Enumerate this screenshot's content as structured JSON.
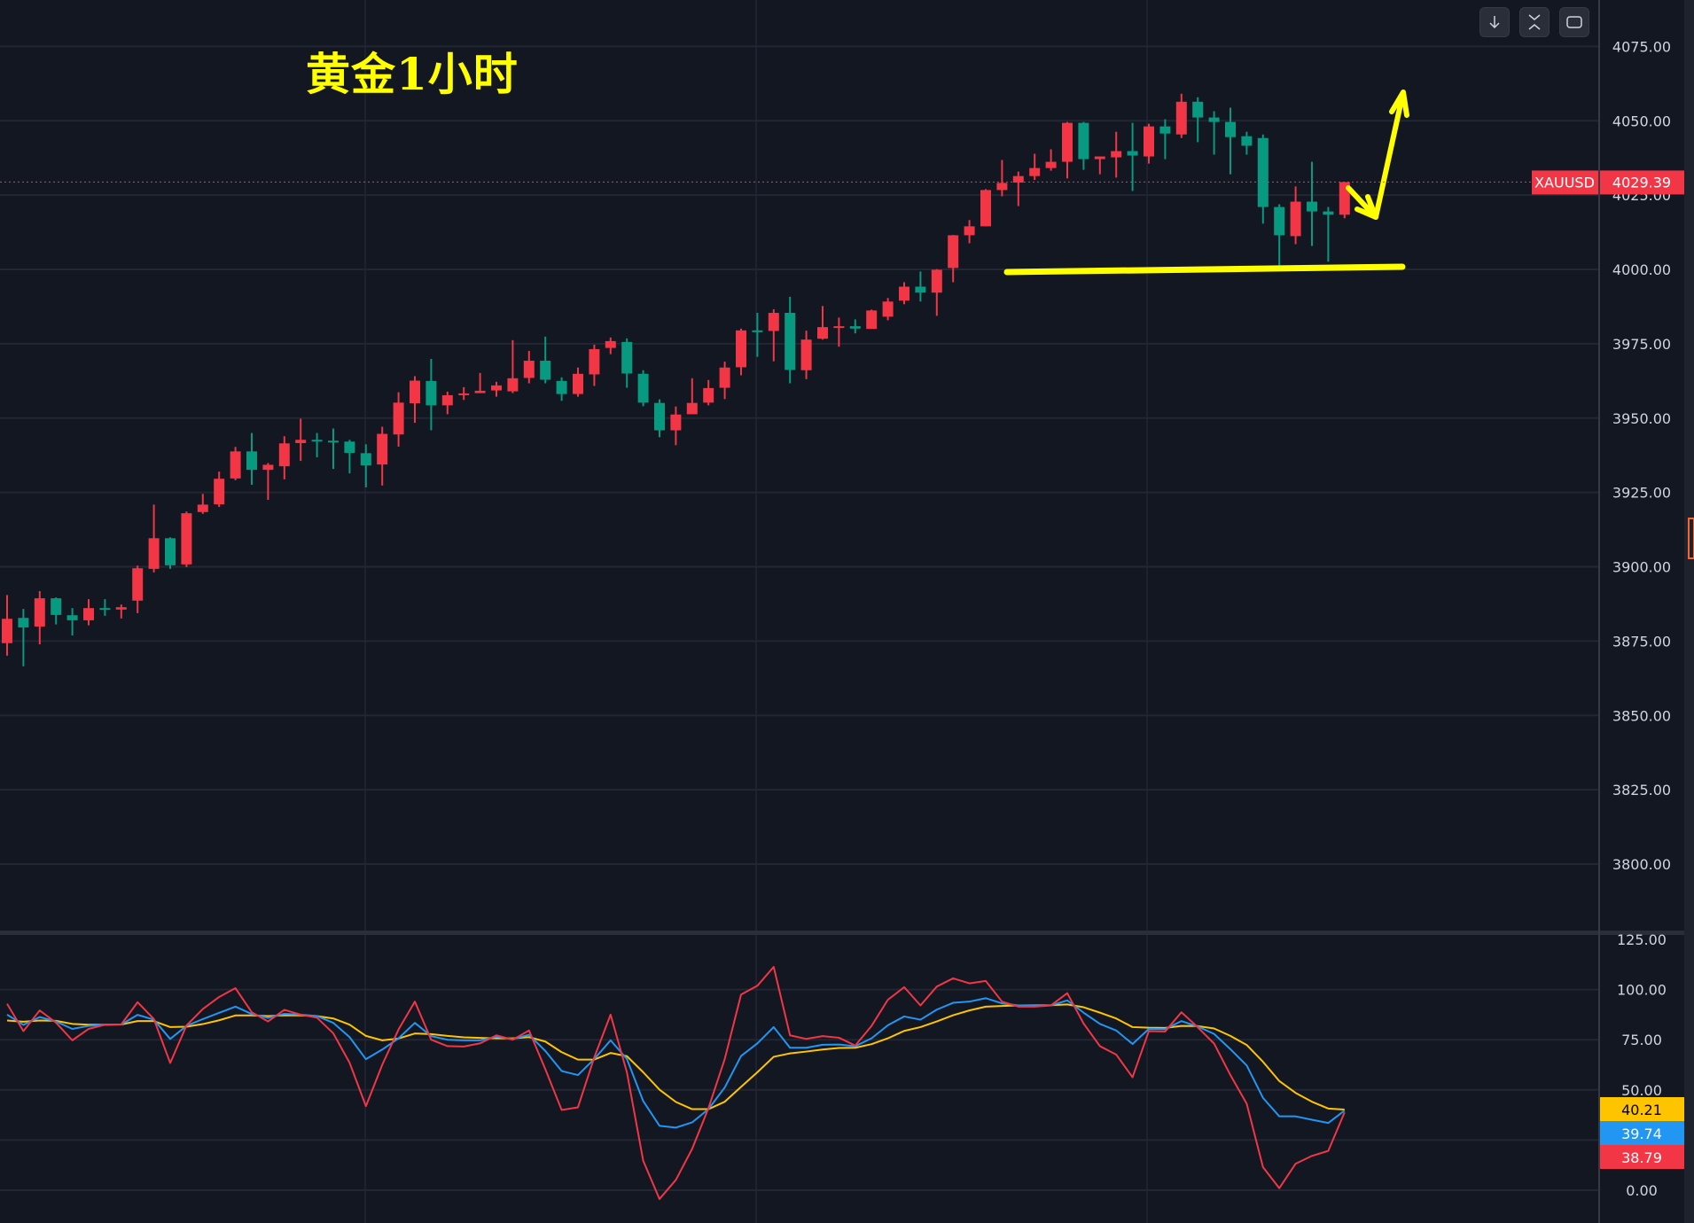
{
  "title": "黄金1小时",
  "toolbar": {
    "buttons": [
      {
        "icon": "arrow-down-icon"
      },
      {
        "icon": "collapse-icon"
      },
      {
        "icon": "fullscreen-icon"
      }
    ]
  },
  "colors": {
    "background": "#131722",
    "up": "#F23645",
    "down": "#089981",
    "annotation": "#FFFF00",
    "indicator_fast": "#F23645",
    "indicator_mid": "#2196F3",
    "indicator_slow": "#FFC400"
  },
  "chart_data": [
    {
      "type": "candlestick",
      "symbol": "XAUUSD",
      "last_price": "4029.39",
      "ylim": [
        3780,
        4080
      ],
      "grid": true,
      "y_ticks": [
        "4075.00",
        "4050.00",
        "4025.00",
        "4000.00",
        "3975.00",
        "3950.00",
        "3925.00",
        "3900.00",
        "3875.00",
        "3850.00",
        "3825.00",
        "3800.00"
      ],
      "ohlc_fields": [
        "open",
        "high",
        "low",
        "close"
      ],
      "candles": [
        [
          3874.3,
          3890.5,
          3870.1,
          3882.5
        ],
        [
          3882.8,
          3885.8,
          3866.5,
          3879.6
        ],
        [
          3879.9,
          3891.8,
          3873.9,
          3889.4
        ],
        [
          3889.4,
          3889.7,
          3880.6,
          3883.8
        ],
        [
          3883.7,
          3886.1,
          3876.9,
          3882.0
        ],
        [
          3882.0,
          3889.1,
          3880.3,
          3886.1
        ],
        [
          3886.1,
          3889.1,
          3883.5,
          3885.9
        ],
        [
          3885.6,
          3887.3,
          3882.6,
          3886.4
        ],
        [
          3888.6,
          3900.4,
          3884.4,
          3899.5
        ],
        [
          3899.3,
          3920.9,
          3898.1,
          3909.6
        ],
        [
          3909.6,
          3909.9,
          3899.3,
          3900.5
        ],
        [
          3900.8,
          3918.6,
          3899.9,
          3918.0
        ],
        [
          3918.4,
          3924.5,
          3917.8,
          3920.9
        ],
        [
          3921.0,
          3932.0,
          3920.1,
          3929.6
        ],
        [
          3929.7,
          3940.3,
          3929.1,
          3938.8
        ],
        [
          3938.8,
          3945.0,
          3927.6,
          3932.6
        ],
        [
          3932.6,
          3934.9,
          3922.5,
          3934.3
        ],
        [
          3933.8,
          3943.9,
          3929.4,
          3941.5
        ],
        [
          3941.6,
          3949.8,
          3935.6,
          3942.7
        ],
        [
          3942.7,
          3945.0,
          3936.8,
          3942.3
        ],
        [
          3942.4,
          3946.5,
          3932.9,
          3942.3
        ],
        [
          3942.1,
          3942.7,
          3931.4,
          3938.3
        ],
        [
          3938.2,
          3941.2,
          3926.7,
          3934.1
        ],
        [
          3934.4,
          3947.1,
          3927.3,
          3944.7
        ],
        [
          3944.5,
          3958.7,
          3940.4,
          3955.2
        ],
        [
          3955.0,
          3964.1,
          3948.4,
          3962.6
        ],
        [
          3962.5,
          3969.9,
          3945.9,
          3954.3
        ],
        [
          3954.3,
          3958.9,
          3951.3,
          3957.7
        ],
        [
          3958.1,
          3960.4,
          3956.1,
          3958.3
        ],
        [
          3958.4,
          3965.2,
          3958.4,
          3959.2
        ],
        [
          3959.3,
          3962.2,
          3957.2,
          3961.0
        ],
        [
          3959.0,
          3976.2,
          3958.4,
          3963.4
        ],
        [
          3963.5,
          3972.6,
          3961.7,
          3969.3
        ],
        [
          3969.3,
          3977.4,
          3961.7,
          3962.9
        ],
        [
          3962.5,
          3963.7,
          3955.8,
          3958.1
        ],
        [
          3958.1,
          3967.0,
          3957.2,
          3964.9
        ],
        [
          3964.7,
          3974.7,
          3960.8,
          3973.2
        ],
        [
          3973.6,
          3977.1,
          3971.5,
          3975.9
        ],
        [
          3975.6,
          3976.8,
          3960.2,
          3965.0
        ],
        [
          3964.9,
          3966.1,
          3954.0,
          3955.2
        ],
        [
          3955.1,
          3956.3,
          3943.6,
          3945.9
        ],
        [
          3945.9,
          3953.9,
          3940.9,
          3951.2
        ],
        [
          3951.3,
          3963.4,
          3951.3,
          3955.1
        ],
        [
          3955.2,
          3962.8,
          3954.3,
          3960.1
        ],
        [
          3960.2,
          3969.0,
          3956.4,
          3967.0
        ],
        [
          3967.1,
          3980.1,
          3964.4,
          3979.5
        ],
        [
          3979.5,
          3985.4,
          3970.6,
          3979.0
        ],
        [
          3979.3,
          3986.6,
          3969.1,
          3985.4
        ],
        [
          3985.4,
          3990.8,
          3961.7,
          3966.2
        ],
        [
          3966.1,
          3979.4,
          3963.1,
          3976.4
        ],
        [
          3976.7,
          3987.7,
          3976.4,
          3980.6
        ],
        [
          3980.4,
          3983.8,
          3974.0,
          3980.9
        ],
        [
          3980.9,
          3983.2,
          3978.5,
          3980.1
        ],
        [
          3980.0,
          3986.5,
          3980.0,
          3986.2
        ],
        [
          3984.1,
          3990.4,
          3982.9,
          3989.2
        ],
        [
          3989.5,
          3995.7,
          3988.3,
          3994.2
        ],
        [
          3994.2,
          3999.3,
          3989.2,
          3992.2
        ],
        [
          3992.2,
          4000.1,
          3984.4,
          3999.9
        ],
        [
          4000.5,
          4011.6,
          3995.7,
          4011.5
        ],
        [
          4011.5,
          4016.6,
          4008.8,
          4014.5
        ],
        [
          4014.5,
          4027.0,
          4014.5,
          4026.7
        ],
        [
          4026.7,
          4036.8,
          4024.6,
          4029.1
        ],
        [
          4029.2,
          4032.9,
          4021.3,
          4031.4
        ],
        [
          4031.4,
          4038.9,
          4030.1,
          4034.1
        ],
        [
          4034.1,
          4040.4,
          4033.2,
          4036.2
        ],
        [
          4036.2,
          4049.6,
          4030.6,
          4049.3
        ],
        [
          4049.3,
          4049.6,
          4033.5,
          4037.1
        ],
        [
          4037.1,
          4038.0,
          4032.0,
          4038.0
        ],
        [
          4037.7,
          4046.3,
          4030.9,
          4039.8
        ],
        [
          4039.8,
          4049.3,
          4026.4,
          4038.3
        ],
        [
          4038.0,
          4049.0,
          4035.6,
          4048.1
        ],
        [
          4048.1,
          4050.5,
          4037.1,
          4045.7
        ],
        [
          4045.4,
          4059.1,
          4044.2,
          4056.4
        ],
        [
          4056.4,
          4057.9,
          4042.8,
          4051.1
        ],
        [
          4051.1,
          4053.2,
          4038.6,
          4049.6
        ],
        [
          4049.6,
          4054.4,
          4032.0,
          4044.5
        ],
        [
          4044.8,
          4046.3,
          4038.6,
          4041.6
        ],
        [
          4044.2,
          4045.4,
          4015.4,
          4021.0
        ],
        [
          4021.0,
          4021.9,
          4001.4,
          4011.5
        ],
        [
          4011.2,
          4027.9,
          4008.5,
          4022.8
        ],
        [
          4022.8,
          4036.2,
          4007.9,
          4019.5
        ],
        [
          4019.5,
          4021.0,
          4002.6,
          4018.4
        ],
        [
          4018.4,
          4029.4,
          4017.2,
          4029.39
        ]
      ],
      "annotations": {
        "support_level": 4000,
        "arrows": [
          "down-then-up"
        ]
      }
    },
    {
      "type": "line",
      "ylim": [
        -5,
        125
      ],
      "grid": true,
      "y_ticks": [
        "125.00",
        "100.00",
        "75.00",
        "50.00",
        "0.00"
      ],
      "series": [
        {
          "color": "#FFC400",
          "last_label": "40.21",
          "values": [
            84.6,
            84.0,
            84.6,
            84.4,
            82.9,
            82.5,
            82.5,
            82.6,
            84.3,
            84.3,
            81.3,
            81.5,
            82.8,
            84.7,
            87.1,
            87.1,
            86.8,
            87.1,
            87.1,
            86.8,
            85.6,
            82.5,
            76.9,
            74.7,
            75.6,
            78.1,
            77.8,
            76.9,
            76.2,
            75.9,
            75.7,
            75.7,
            76.3,
            74.1,
            68.8,
            65.1,
            65.1,
            68.4,
            66.8,
            58.8,
            50.1,
            44.0,
            40.4,
            40.4,
            44.1,
            51.5,
            58.8,
            66.5,
            68.2,
            69.1,
            70.1,
            70.9,
            71.0,
            72.8,
            75.7,
            79.4,
            81.3,
            84.1,
            87.2,
            89.6,
            91.5,
            91.8,
            92.1,
            92.1,
            92.2,
            92.6,
            91.2,
            88.5,
            85.6,
            81.3,
            81.0,
            80.9,
            81.9,
            81.8,
            80.6,
            76.9,
            72.4,
            64.0,
            54.4,
            48.5,
            44.1,
            40.7,
            40.21
          ]
        },
        {
          "color": "#2196F3",
          "last_label": "39.74",
          "values": [
            87.5,
            82.4,
            86.3,
            84.1,
            80.4,
            81.9,
            82.5,
            82.6,
            87.4,
            85.0,
            75.4,
            81.9,
            85.3,
            88.4,
            91.5,
            87.8,
            85.9,
            87.9,
            87.5,
            86.8,
            83.4,
            76.3,
            65.3,
            70.1,
            75.7,
            83.4,
            76.8,
            75.0,
            74.7,
            74.7,
            76.5,
            75.3,
            77.5,
            69.4,
            59.4,
            57.4,
            65.4,
            74.7,
            65.4,
            44.4,
            32.1,
            31.2,
            33.8,
            40.4,
            51.2,
            66.9,
            73.2,
            81.3,
            71.0,
            71.0,
            72.5,
            72.6,
            71.8,
            75.7,
            82.2,
            86.6,
            85.0,
            90.0,
            93.4,
            94.0,
            95.7,
            93.1,
            92.1,
            91.8,
            92.1,
            94.6,
            88.5,
            82.9,
            79.6,
            72.9,
            80.4,
            80.3,
            84.3,
            81.6,
            77.9,
            70.3,
            62.2,
            46.0,
            36.8,
            36.8,
            35.1,
            33.5,
            39.74
          ]
        },
        {
          "color": "#F23645",
          "last_label": "38.79",
          "values": [
            92.9,
            79.3,
            89.6,
            83.5,
            74.7,
            80.4,
            82.5,
            82.6,
            93.7,
            85.3,
            63.4,
            82.1,
            90.3,
            96.3,
            100.7,
            88.7,
            84.1,
            89.9,
            87.5,
            86.0,
            78.2,
            63.5,
            41.9,
            62.5,
            80.1,
            94.0,
            75.0,
            71.8,
            71.6,
            73.2,
            77.2,
            75.0,
            79.6,
            60.3,
            40.0,
            41.3,
            66.2,
            87.5,
            58.8,
            14.7,
            -4.4,
            5.1,
            20.6,
            40.9,
            65.4,
            97.5,
            101.9,
            111.3,
            77.2,
            75.4,
            76.8,
            76.0,
            72.1,
            81.9,
            94.9,
            101.2,
            92.1,
            101.5,
            105.6,
            103.1,
            104.3,
            94.0,
            91.5,
            91.5,
            92.1,
            98.2,
            83.1,
            71.8,
            67.6,
            56.3,
            79.3,
            79.1,
            88.7,
            81.2,
            73.1,
            57.4,
            43.1,
            11.5,
            1.0,
            13.2,
            17.1,
            19.6,
            38.79
          ]
        }
      ]
    }
  ]
}
